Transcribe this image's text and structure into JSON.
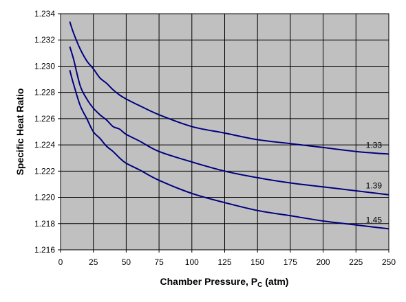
{
  "chart_data": {
    "type": "line",
    "title": "",
    "xlabel": "Chamber Pressure, P",
    "xlabel_sub": "C",
    "xlabel_suffix": " (atm)",
    "ylabel": "Specific Heat Ratio",
    "xlim": [
      0,
      250
    ],
    "ylim": [
      1.216,
      1.234
    ],
    "xticks": [
      0,
      25,
      50,
      75,
      100,
      125,
      150,
      175,
      200,
      225,
      250
    ],
    "yticks": [
      1.216,
      1.218,
      1.22,
      1.222,
      1.224,
      1.226,
      1.228,
      1.23,
      1.232,
      1.234
    ],
    "ytick_labels": [
      "1.216",
      "1.218",
      "1.220",
      "1.222",
      "1.224",
      "1.226",
      "1.228",
      "1.230",
      "1.232",
      "1.234"
    ],
    "grid": true,
    "plot_background": "#c0c0c0",
    "line_color": "#000080",
    "series": [
      {
        "label": "1.33",
        "x": [
          7,
          10,
          15,
          20,
          25,
          30,
          35,
          40,
          45,
          50,
          60,
          75,
          100,
          125,
          150,
          175,
          200,
          225,
          250
        ],
        "y": [
          1.2334,
          1.2325,
          1.2313,
          1.2304,
          1.2298,
          1.2291,
          1.2287,
          1.2282,
          1.2278,
          1.2275,
          1.227,
          1.2263,
          1.2254,
          1.2249,
          1.2244,
          1.2241,
          1.2238,
          1.2235,
          1.2233
        ]
      },
      {
        "label": "1.39",
        "x": [
          7,
          10,
          15,
          20,
          25,
          30,
          35,
          40,
          45,
          50,
          60,
          75,
          100,
          125,
          150,
          175,
          200,
          225,
          250
        ],
        "y": [
          1.2315,
          1.2305,
          1.2285,
          1.2275,
          1.2268,
          1.2263,
          1.2259,
          1.2254,
          1.2252,
          1.2248,
          1.2243,
          1.2235,
          1.2227,
          1.222,
          1.2215,
          1.2211,
          1.2208,
          1.2205,
          1.2202
        ]
      },
      {
        "label": "1.45",
        "x": [
          7,
          10,
          15,
          20,
          25,
          30,
          35,
          40,
          45,
          50,
          60,
          75,
          100,
          125,
          150,
          175,
          200,
          225,
          250
        ],
        "y": [
          1.2297,
          1.2286,
          1.227,
          1.226,
          1.225,
          1.2245,
          1.2239,
          1.2235,
          1.223,
          1.2226,
          1.2221,
          1.2213,
          1.2203,
          1.2196,
          1.219,
          1.2186,
          1.2182,
          1.2179,
          1.2176
        ]
      }
    ]
  }
}
